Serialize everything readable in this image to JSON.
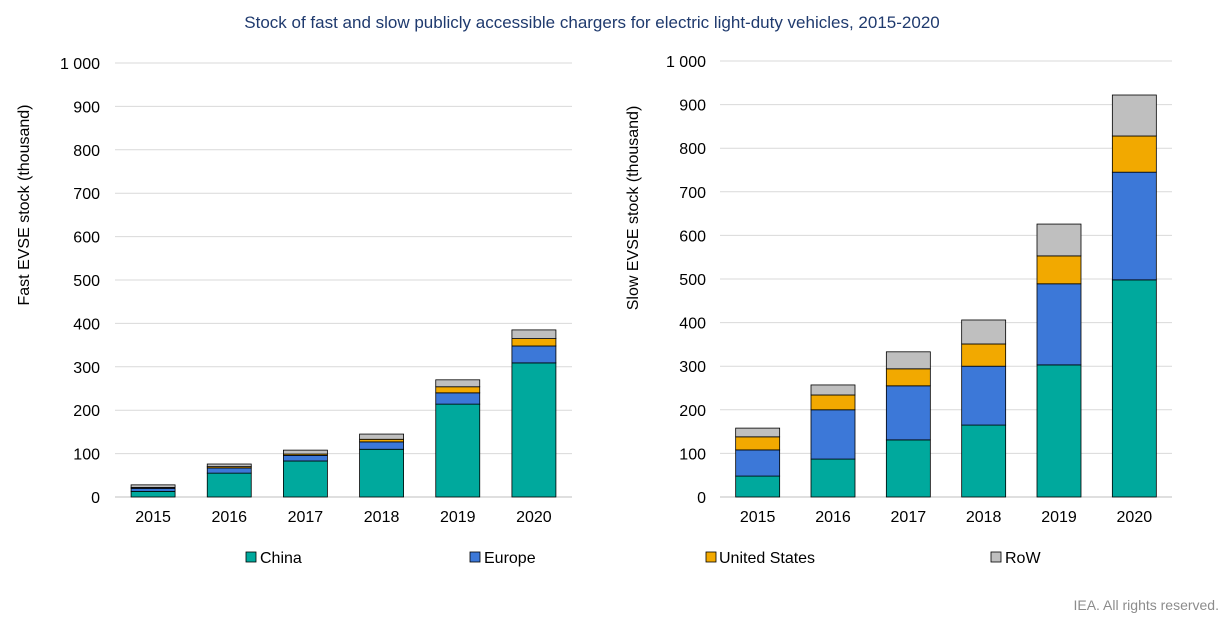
{
  "title": "Stock of fast and slow publicly accessible chargers for electric light-duty vehicles, 2015-2020",
  "legend": [
    {
      "name": "China",
      "color": "#00a99d"
    },
    {
      "name": "Europe",
      "color": "#3c78d8"
    },
    {
      "name": "United States",
      "color": "#f2a900"
    },
    {
      "name": "RoW",
      "color": "#bfbfbf"
    }
  ],
  "footer": "IEA. All rights reserved.",
  "chart_data": [
    {
      "type": "bar",
      "stacked": true,
      "title": "",
      "xlabel": "",
      "ylabel": "Fast EVSE stock (thousand)",
      "ylim": [
        0,
        1000
      ],
      "grid": true,
      "yticks": [
        {
          "value": 0,
          "label": "0"
        },
        {
          "value": 100,
          "label": "100"
        },
        {
          "value": 200,
          "label": "200"
        },
        {
          "value": 300,
          "label": "300"
        },
        {
          "value": 400,
          "label": "400"
        },
        {
          "value": 500,
          "label": "500"
        },
        {
          "value": 600,
          "label": "600"
        },
        {
          "value": 700,
          "label": "700"
        },
        {
          "value": 800,
          "label": "800"
        },
        {
          "value": 900,
          "label": "900"
        },
        {
          "value": 1000,
          "label": "1 000"
        }
      ],
      "categories": [
        "2015",
        "2016",
        "2017",
        "2018",
        "2019",
        "2020"
      ],
      "series": [
        {
          "name": "China",
          "values": [
            13,
            55,
            83,
            110,
            214,
            309
          ]
        },
        {
          "name": "Europe",
          "values": [
            7,
            12,
            13,
            17,
            26,
            39
          ]
        },
        {
          "name": "United States",
          "values": [
            2,
            3,
            3,
            6,
            14,
            17
          ]
        },
        {
          "name": "RoW",
          "values": [
            6,
            6,
            9,
            12,
            16,
            20
          ]
        }
      ]
    },
    {
      "type": "bar",
      "stacked": true,
      "title": "",
      "xlabel": "",
      "ylabel": "Slow EVSE stock (thousand)",
      "ylim": [
        0,
        1000
      ],
      "grid": true,
      "yticks": [
        {
          "value": 0,
          "label": "0"
        },
        {
          "value": 100,
          "label": "100"
        },
        {
          "value": 200,
          "label": "200"
        },
        {
          "value": 300,
          "label": "300"
        },
        {
          "value": 400,
          "label": "400"
        },
        {
          "value": 500,
          "label": "500"
        },
        {
          "value": 600,
          "label": "600"
        },
        {
          "value": 700,
          "label": "700"
        },
        {
          "value": 800,
          "label": "800"
        },
        {
          "value": 900,
          "label": "900"
        },
        {
          "value": 1000,
          "label": "1 000"
        }
      ],
      "categories": [
        "2015",
        "2016",
        "2017",
        "2018",
        "2019",
        "2020"
      ],
      "series": [
        {
          "name": "China",
          "values": [
            48,
            87,
            131,
            165,
            303,
            498
          ]
        },
        {
          "name": "Europe",
          "values": [
            60,
            113,
            124,
            135,
            186,
            247
          ]
        },
        {
          "name": "United States",
          "values": [
            30,
            34,
            39,
            51,
            64,
            83
          ]
        },
        {
          "name": "RoW",
          "values": [
            20,
            23,
            39,
            55,
            73,
            94
          ]
        }
      ]
    }
  ]
}
